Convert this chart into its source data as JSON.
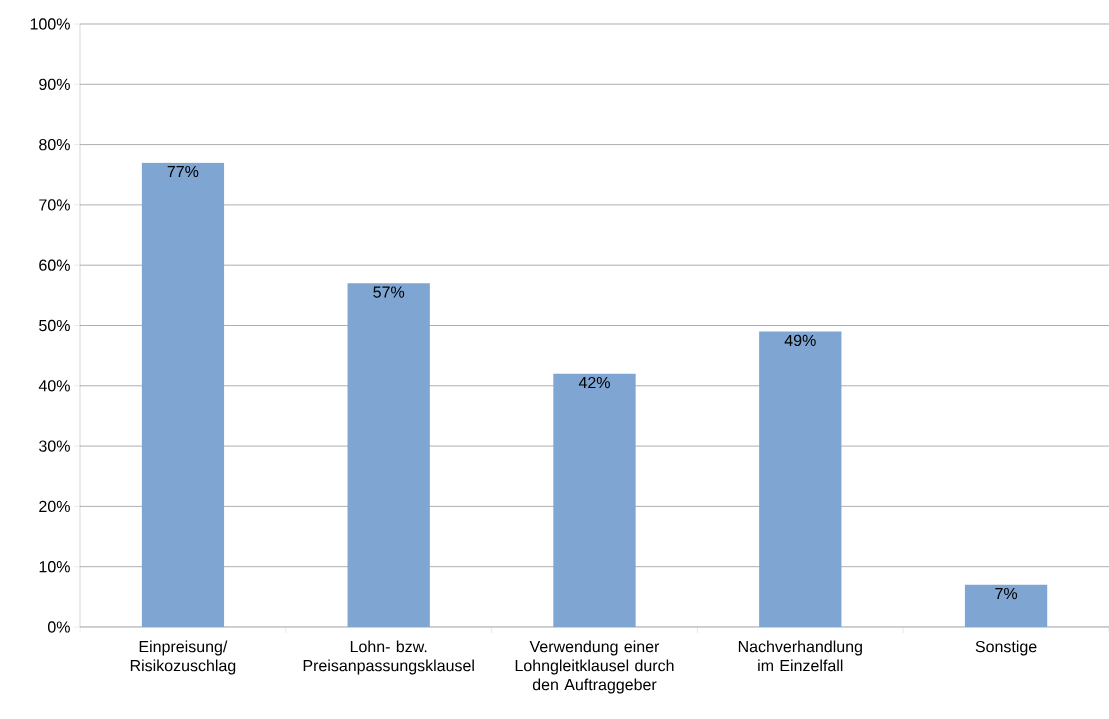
{
  "chart_data": {
    "type": "bar",
    "categories": [
      "Einpreisung/ Risikozuschlag",
      "Lohn- bzw. Preisanpassungsklausel",
      "Verwendung einer Lohngleitklausel durch den Auftraggeber",
      "Nachverhandlung im Einzelfall",
      "Sonstige"
    ],
    "values": [
      77,
      57,
      42,
      49,
      7
    ],
    "value_labels": [
      "77%",
      "57%",
      "42%",
      "49%",
      "7%"
    ],
    "color": "#7fa5d3",
    "ylim": [
      0,
      100
    ],
    "yticks": [
      {
        "value": 0,
        "label": "0%"
      },
      {
        "value": 10,
        "label": "10%"
      },
      {
        "value": 20,
        "label": "20%"
      },
      {
        "value": 30,
        "label": "30%"
      },
      {
        "value": 40,
        "label": "40%"
      },
      {
        "value": 50,
        "label": "50%"
      },
      {
        "value": 60,
        "label": "60%"
      },
      {
        "value": 70,
        "label": "70%"
      },
      {
        "value": 80,
        "label": "80%"
      },
      {
        "value": 90,
        "label": "90%"
      },
      {
        "value": 100,
        "label": "100%"
      }
    ],
    "grid": "y"
  }
}
